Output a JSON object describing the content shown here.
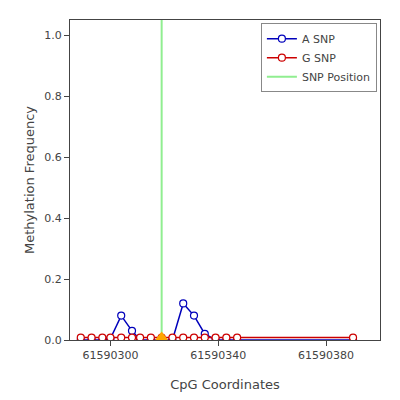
{
  "chart_data": {
    "type": "line",
    "xlabel": "CpG Coordinates",
    "ylabel": "Methylation Frequency",
    "xlim": [
      61590285,
      61590400
    ],
    "ylim": [
      0,
      1.05
    ],
    "xticks": [
      61590300,
      61590340,
      61590380
    ],
    "yticks": [
      {
        "value": 0.0,
        "label": "0.0"
      },
      0.2,
      0.4,
      0.6,
      0.8,
      {
        "value": 1.0,
        "label": "1.0"
      }
    ],
    "grid": false,
    "legend": "upper right",
    "series": [
      {
        "name": "A SNP",
        "type": "line",
        "color": "#0000BB",
        "marker": "circle-open",
        "line_style": "solid",
        "x": [
          61590289,
          61590293,
          61590297,
          61590300,
          61590304,
          61590308,
          61590311,
          61590315,
          61590323,
          61590327,
          61590331,
          61590335,
          61590339,
          61590343,
          61590347,
          61590390
        ],
        "values": [
          0.0,
          0.0,
          0.0,
          0.005,
          0.08,
          0.03,
          0.0,
          0.0,
          0.0,
          0.12,
          0.08,
          0.02,
          0.0,
          0.0,
          0.0,
          0.0
        ]
      },
      {
        "name": "G SNP",
        "type": "line",
        "color": "#CC0000",
        "marker": "circle-open",
        "line_style": "solid",
        "x": [
          61590289,
          61590293,
          61590297,
          61590300,
          61590304,
          61590308,
          61590311,
          61590315,
          61590319,
          61590323,
          61590327,
          61590331,
          61590335,
          61590339,
          61590343,
          61590347,
          61590390
        ],
        "values": [
          0.008,
          0.008,
          0.008,
          0.008,
          0.008,
          0.008,
          0.008,
          0.008,
          0.008,
          0.008,
          0.008,
          0.008,
          0.008,
          0.008,
          0.008,
          0.008,
          0.008
        ]
      },
      {
        "name": "SNP Position",
        "type": "vline",
        "color": "#90EE90",
        "line_style": "solid",
        "x": [
          61590319
        ]
      },
      {
        "type": "scatter",
        "color": "#FFA500",
        "marker": "triangle-up",
        "x": [
          61590319
        ],
        "values": [
          0.008
        ]
      }
    ]
  }
}
